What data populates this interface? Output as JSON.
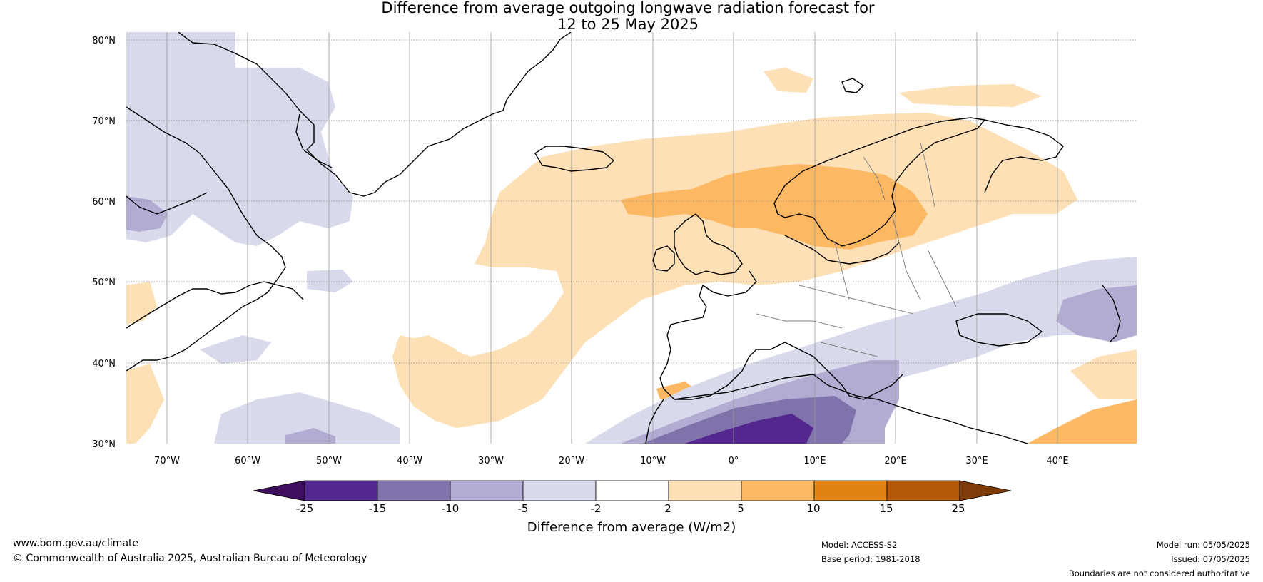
{
  "title": {
    "line1": "Difference from average outgoing longwave radiation forecast for",
    "line2": "12 to 25 May 2025"
  },
  "map": {
    "lat_labels": [
      "80°N",
      "70°N",
      "60°N",
      "50°N",
      "40°N",
      "30°N"
    ],
    "lon_labels": [
      "70°W",
      "60°W",
      "50°W",
      "40°W",
      "30°W",
      "20°W",
      "10°W",
      "0°",
      "10°E",
      "20°E",
      "30°E",
      "40°E"
    ],
    "gridlines": true
  },
  "colorbar": {
    "ticks": [
      "-25",
      "-15",
      "-10",
      "-5",
      "-2",
      "2",
      "5",
      "10",
      "15",
      "25"
    ],
    "bins": [
      {
        "color": "#3f0f5e"
      },
      {
        "color": "#54278f"
      },
      {
        "color": "#8073ac"
      },
      {
        "color": "#b2abd2"
      },
      {
        "color": "#d8daeb"
      },
      {
        "color": "#ffffff"
      },
      {
        "color": "#fee0b6"
      },
      {
        "color": "#fdb863"
      },
      {
        "color": "#e08214"
      },
      {
        "color": "#b35806"
      },
      {
        "color": "#7f3b08"
      }
    ],
    "title": "Difference from average (W/m2)"
  },
  "footer": {
    "website": "www.bom.gov.au/climate",
    "copyright": "© Commonwealth of Australia 2025, Australian Bureau of Meteorology",
    "model": "Model: ACCESS-S2",
    "base_period": "Base period: 1981-2018",
    "model_run": "Model run: 05/05/2025",
    "issued": "Issued: 07/05/2025",
    "disclaimer": "Boundaries are not considered authoritative"
  }
}
